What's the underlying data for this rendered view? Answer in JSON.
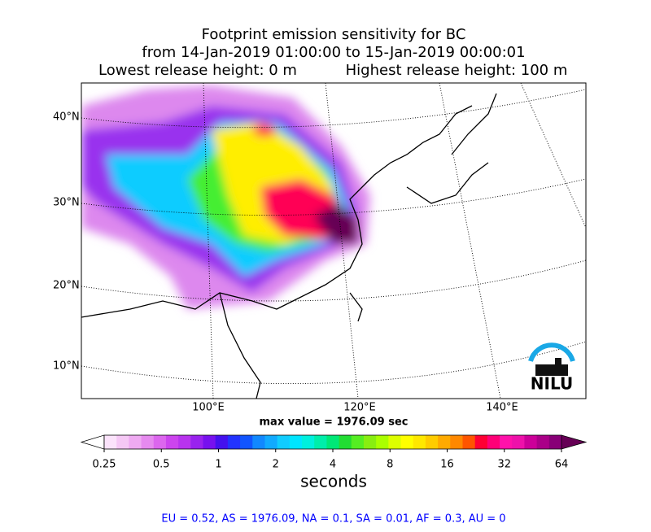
{
  "title": {
    "line1": "Footprint emission sensitivity for BC",
    "line2": "from 14-Jan-2019 01:00:00 to 15-Jan-2019 00:00:01",
    "line3_left": "Lowest release height: 0 m",
    "line3_right": "Highest release height: 100 m"
  },
  "map": {
    "lat_labels": [
      "40°N",
      "30°N",
      "20°N",
      "10°N"
    ],
    "lon_labels": [
      "100°E",
      "120°E",
      "140°E"
    ],
    "logo": "NILU"
  },
  "max_value_text": "max value = 1976.09 sec",
  "colorbar": {
    "ticks": [
      0.25,
      0.5,
      1,
      2,
      4,
      8,
      16,
      32,
      64
    ],
    "label": "seconds",
    "colors": [
      "#ffffff",
      "#fbe3fb",
      "#f5c8f5",
      "#efaaf2",
      "#e68aef",
      "#dc66ee",
      "#cc44ee",
      "#b833ee",
      "#9922ee",
      "#7711ee",
      "#4411ee",
      "#2233ff",
      "#1155ff",
      "#1188ff",
      "#11aaff",
      "#11ccff",
      "#00e5ff",
      "#00f0dd",
      "#00eeaa",
      "#00e877",
      "#22dd33",
      "#55ee22",
      "#88ee11",
      "#aaff00",
      "#ddff00",
      "#ffff00",
      "#ffe800",
      "#ffcc00",
      "#ffaa00",
      "#ff8800",
      "#ff5500",
      "#ff0033",
      "#ff0077",
      "#ff11aa",
      "#ee11aa",
      "#cc0099",
      "#aa0088",
      "#880077",
      "#660055"
    ]
  },
  "footer": "EU = 0.52,  AS = 1976.09,  NA = 0.1,  SA = 0.01,  AF = 0.3,  AU = 0"
}
